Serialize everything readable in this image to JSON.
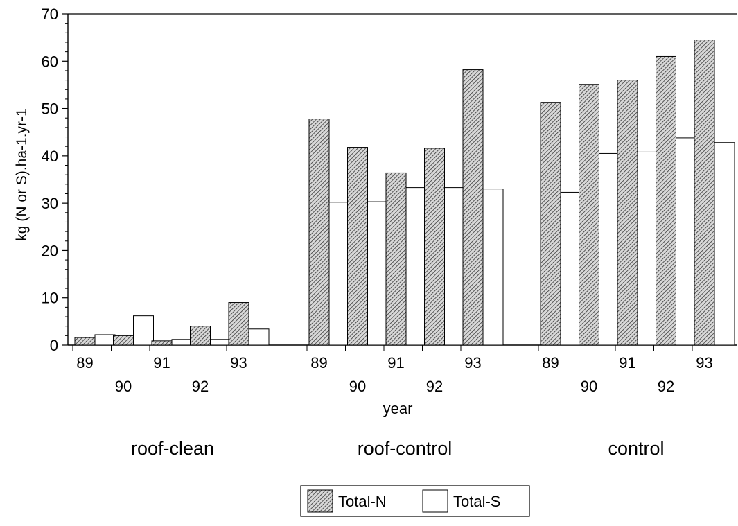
{
  "chart_data": {
    "type": "bar",
    "title": "",
    "ylabel": "kg (N or S).ha-1.yr-1",
    "xlabel": "year",
    "ylim": [
      0,
      70
    ],
    "yticks": [
      0,
      10,
      20,
      30,
      40,
      50,
      60,
      70
    ],
    "grid": false,
    "legend_position": "bottom-center",
    "groups": [
      {
        "name": "roof-clean",
        "years": [
          "89",
          "90",
          "91",
          "92",
          "93"
        ],
        "total_n": [
          1.6,
          2.0,
          0.9,
          4.0,
          9.0
        ],
        "total_s": [
          2.2,
          6.2,
          1.2,
          1.2,
          3.4
        ]
      },
      {
        "name": "roof-control",
        "years": [
          "89",
          "90",
          "91",
          "92",
          "93"
        ],
        "total_n": [
          47.8,
          41.8,
          36.4,
          41.6,
          58.2
        ],
        "total_s": [
          30.2,
          30.3,
          33.3,
          33.3,
          33.0
        ]
      },
      {
        "name": "control",
        "years": [
          "89",
          "90",
          "91",
          "92",
          "93"
        ],
        "total_n": [
          51.3,
          55.1,
          56.0,
          61.0,
          64.5
        ],
        "total_s": [
          32.3,
          40.5,
          40.8,
          43.8,
          42.8
        ]
      }
    ],
    "series": [
      {
        "name": "Total-N",
        "key": "total_n",
        "fill": "hatched"
      },
      {
        "name": "Total-S",
        "key": "total_s",
        "fill": "#ffffff"
      }
    ]
  }
}
